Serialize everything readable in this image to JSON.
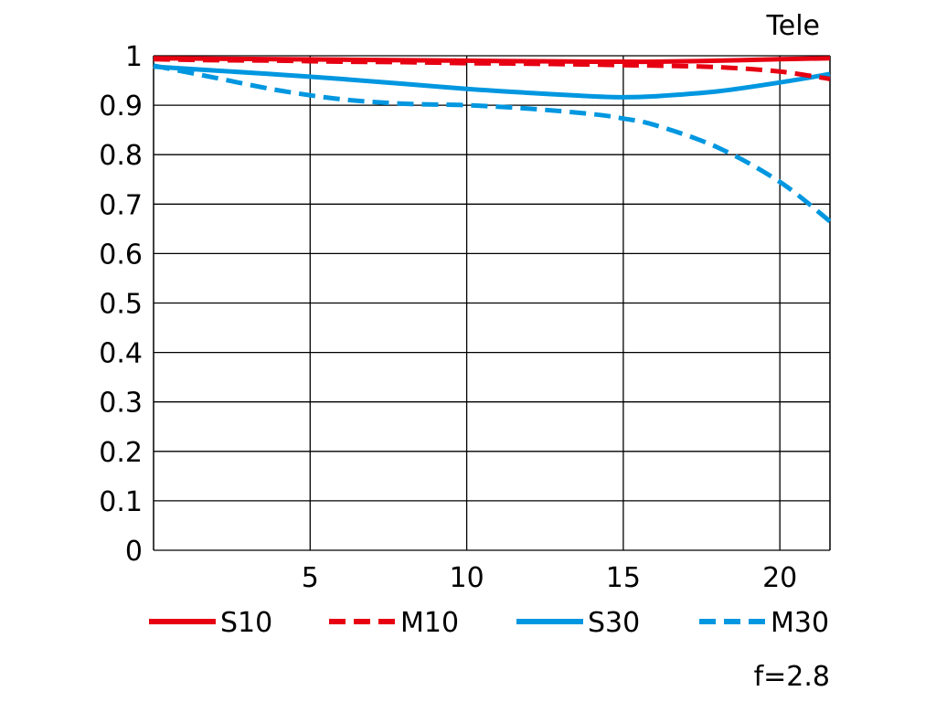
{
  "chart_data": {
    "type": "line",
    "title": "Tele",
    "footnote": "f=2.8",
    "xlabel": "",
    "ylabel": "",
    "xlim": [
      0,
      21.6
    ],
    "ylim": [
      0,
      1
    ],
    "x_ticks": [
      5,
      10,
      15,
      20
    ],
    "y_ticks": [
      0,
      0.1,
      0.2,
      0.3,
      0.4,
      0.5,
      0.6,
      0.7,
      0.8,
      0.9,
      1
    ],
    "grid": true,
    "legend_position": "bottom",
    "x": [
      0,
      2,
      4,
      6,
      8,
      10,
      12,
      14,
      15,
      16,
      18,
      20,
      21.6
    ],
    "series": [
      {
        "name": "S10",
        "color": "#e60012",
        "dash": "solid",
        "values": [
          0.995,
          0.994,
          0.993,
          0.992,
          0.991,
          0.99,
          0.989,
          0.988,
          0.988,
          0.988,
          0.99,
          0.993,
          0.995
        ]
      },
      {
        "name": "M10",
        "color": "#e60012",
        "dash": "dashed",
        "values": [
          0.993,
          0.991,
          0.99,
          0.988,
          0.987,
          0.985,
          0.984,
          0.982,
          0.981,
          0.98,
          0.977,
          0.968,
          0.953
        ]
      },
      {
        "name": "S30",
        "color": "#0097e0",
        "dash": "solid",
        "values": [
          0.978,
          0.97,
          0.962,
          0.953,
          0.943,
          0.933,
          0.925,
          0.918,
          0.916,
          0.918,
          0.928,
          0.946,
          0.963
        ]
      },
      {
        "name": "M30",
        "color": "#0097e0",
        "dash": "dashed",
        "values": [
          0.98,
          0.955,
          0.93,
          0.912,
          0.903,
          0.9,
          0.893,
          0.882,
          0.873,
          0.86,
          0.815,
          0.745,
          0.665
        ]
      }
    ]
  }
}
